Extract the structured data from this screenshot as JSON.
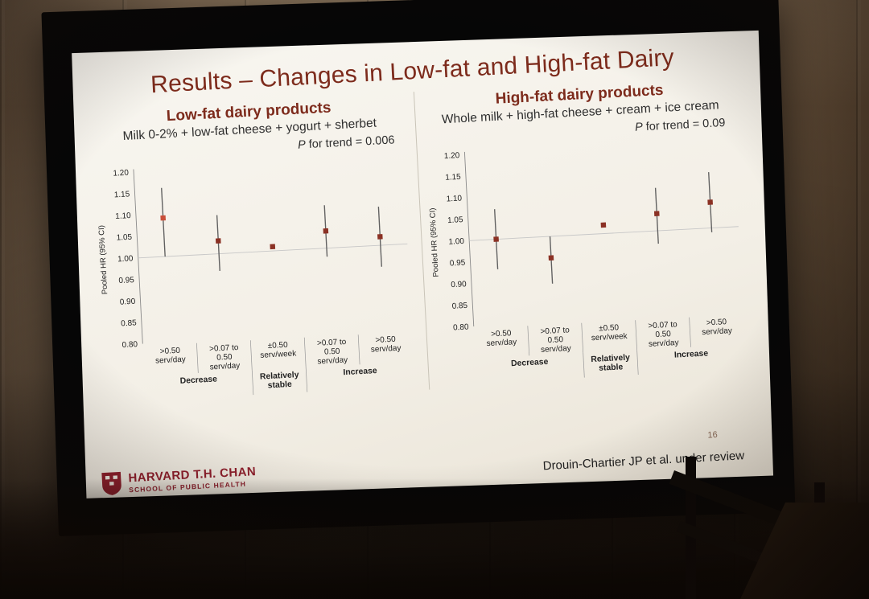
{
  "colors": {
    "slide_title": "#7d2b1c",
    "marker": "#8b3124",
    "marker_highlight": "#c94f3a",
    "ci": "#5f5f5f",
    "axis": "#8a8a8a",
    "grid": "#c7c7c7",
    "separator": "#9a9a9a",
    "text": "#222222",
    "brand": "#8f1f2c"
  },
  "slide": {
    "title": "Results – Changes in Low-fat and High-fat Dairy",
    "footer": {
      "brand_name": "HARVARD T.H. CHAN",
      "brand_sub": "SCHOOL OF PUBLIC HEALTH",
      "citation": "Drouin-Chartier JP et al. under review",
      "page_number": "16"
    }
  },
  "chart_data": [
    {
      "type": "scatter",
      "panel": "low-fat",
      "title": "Low-fat dairy products",
      "subtitle": "Milk 0-2% + low-fat cheese + yogurt + sherbet",
      "p_trend": {
        "prefix": "P",
        "rest": " for trend = 0.006"
      },
      "ylabel": "Pooled HR (95% CI)",
      "ylim": [
        0.8,
        1.2
      ],
      "yticks": [
        1.2,
        1.15,
        1.1,
        1.05,
        1.0,
        0.95,
        0.9,
        0.85,
        0.8
      ],
      "reference_line": 1.0,
      "grid": false,
      "categories": [
        {
          "lines": [
            ">0.50",
            "serv/day"
          ]
        },
        {
          "lines": [
            ">0.07 to",
            "0.50",
            "serv/day"
          ]
        },
        {
          "lines": [
            "±0.50",
            "serv/week"
          ]
        },
        {
          "lines": [
            ">0.07 to",
            "0.50",
            "serv/day"
          ]
        },
        {
          "lines": [
            ">0.50",
            "serv/day"
          ]
        }
      ],
      "groups": [
        {
          "lines": [
            "Decrease"
          ],
          "span": [
            0,
            1
          ]
        },
        {
          "lines": [
            "Relatively",
            "stable"
          ],
          "span": [
            2,
            2
          ]
        },
        {
          "lines": [
            "Increase"
          ],
          "span": [
            3,
            4
          ]
        }
      ],
      "points": [
        {
          "hr": 1.09,
          "lo": 1.0,
          "hi": 1.16,
          "highlight": true
        },
        {
          "hr": 1.03,
          "lo": 0.96,
          "hi": 1.09,
          "highlight": false
        },
        {
          "hr": 1.01,
          "lo": 1.01,
          "hi": 1.01,
          "highlight": false
        },
        {
          "hr": 1.04,
          "lo": 0.98,
          "hi": 1.1,
          "highlight": false
        },
        {
          "hr": 1.02,
          "lo": 0.95,
          "hi": 1.09,
          "highlight": false
        }
      ]
    },
    {
      "type": "scatter",
      "panel": "high-fat",
      "title": "High-fat dairy products",
      "subtitle": "Whole milk + high-fat cheese + cream + ice cream",
      "p_trend": {
        "prefix": "P",
        "rest": " for trend = 0.09"
      },
      "ylabel": "Pooled HR (95% CI)",
      "ylim": [
        0.8,
        1.2
      ],
      "yticks": [
        1.2,
        1.15,
        1.1,
        1.05,
        1.0,
        0.95,
        0.9,
        0.85,
        0.8
      ],
      "reference_line": 1.0,
      "grid": false,
      "categories": [
        {
          "lines": [
            ">0.50",
            "serv/day"
          ]
        },
        {
          "lines": [
            ">0.07 to",
            "0.50",
            "serv/day"
          ]
        },
        {
          "lines": [
            "±0.50",
            "serv/week"
          ]
        },
        {
          "lines": [
            ">0.07 to",
            "0.50",
            "serv/day"
          ]
        },
        {
          "lines": [
            ">0.50",
            "serv/day"
          ]
        }
      ],
      "groups": [
        {
          "lines": [
            "Decrease"
          ],
          "span": [
            0,
            1
          ]
        },
        {
          "lines": [
            "Relatively",
            "stable"
          ],
          "span": [
            2,
            2
          ]
        },
        {
          "lines": [
            "Increase"
          ],
          "span": [
            3,
            4
          ]
        }
      ],
      "points": [
        {
          "hr": 1.0,
          "lo": 0.93,
          "hi": 1.07,
          "highlight": false
        },
        {
          "hr": 0.95,
          "lo": 0.89,
          "hi": 1.0,
          "highlight": false
        },
        {
          "hr": 1.02,
          "lo": 1.02,
          "hi": 1.02,
          "highlight": false
        },
        {
          "hr": 1.04,
          "lo": 0.97,
          "hi": 1.1,
          "highlight": false
        },
        {
          "hr": 1.06,
          "lo": 0.99,
          "hi": 1.13,
          "highlight": false
        }
      ]
    }
  ]
}
